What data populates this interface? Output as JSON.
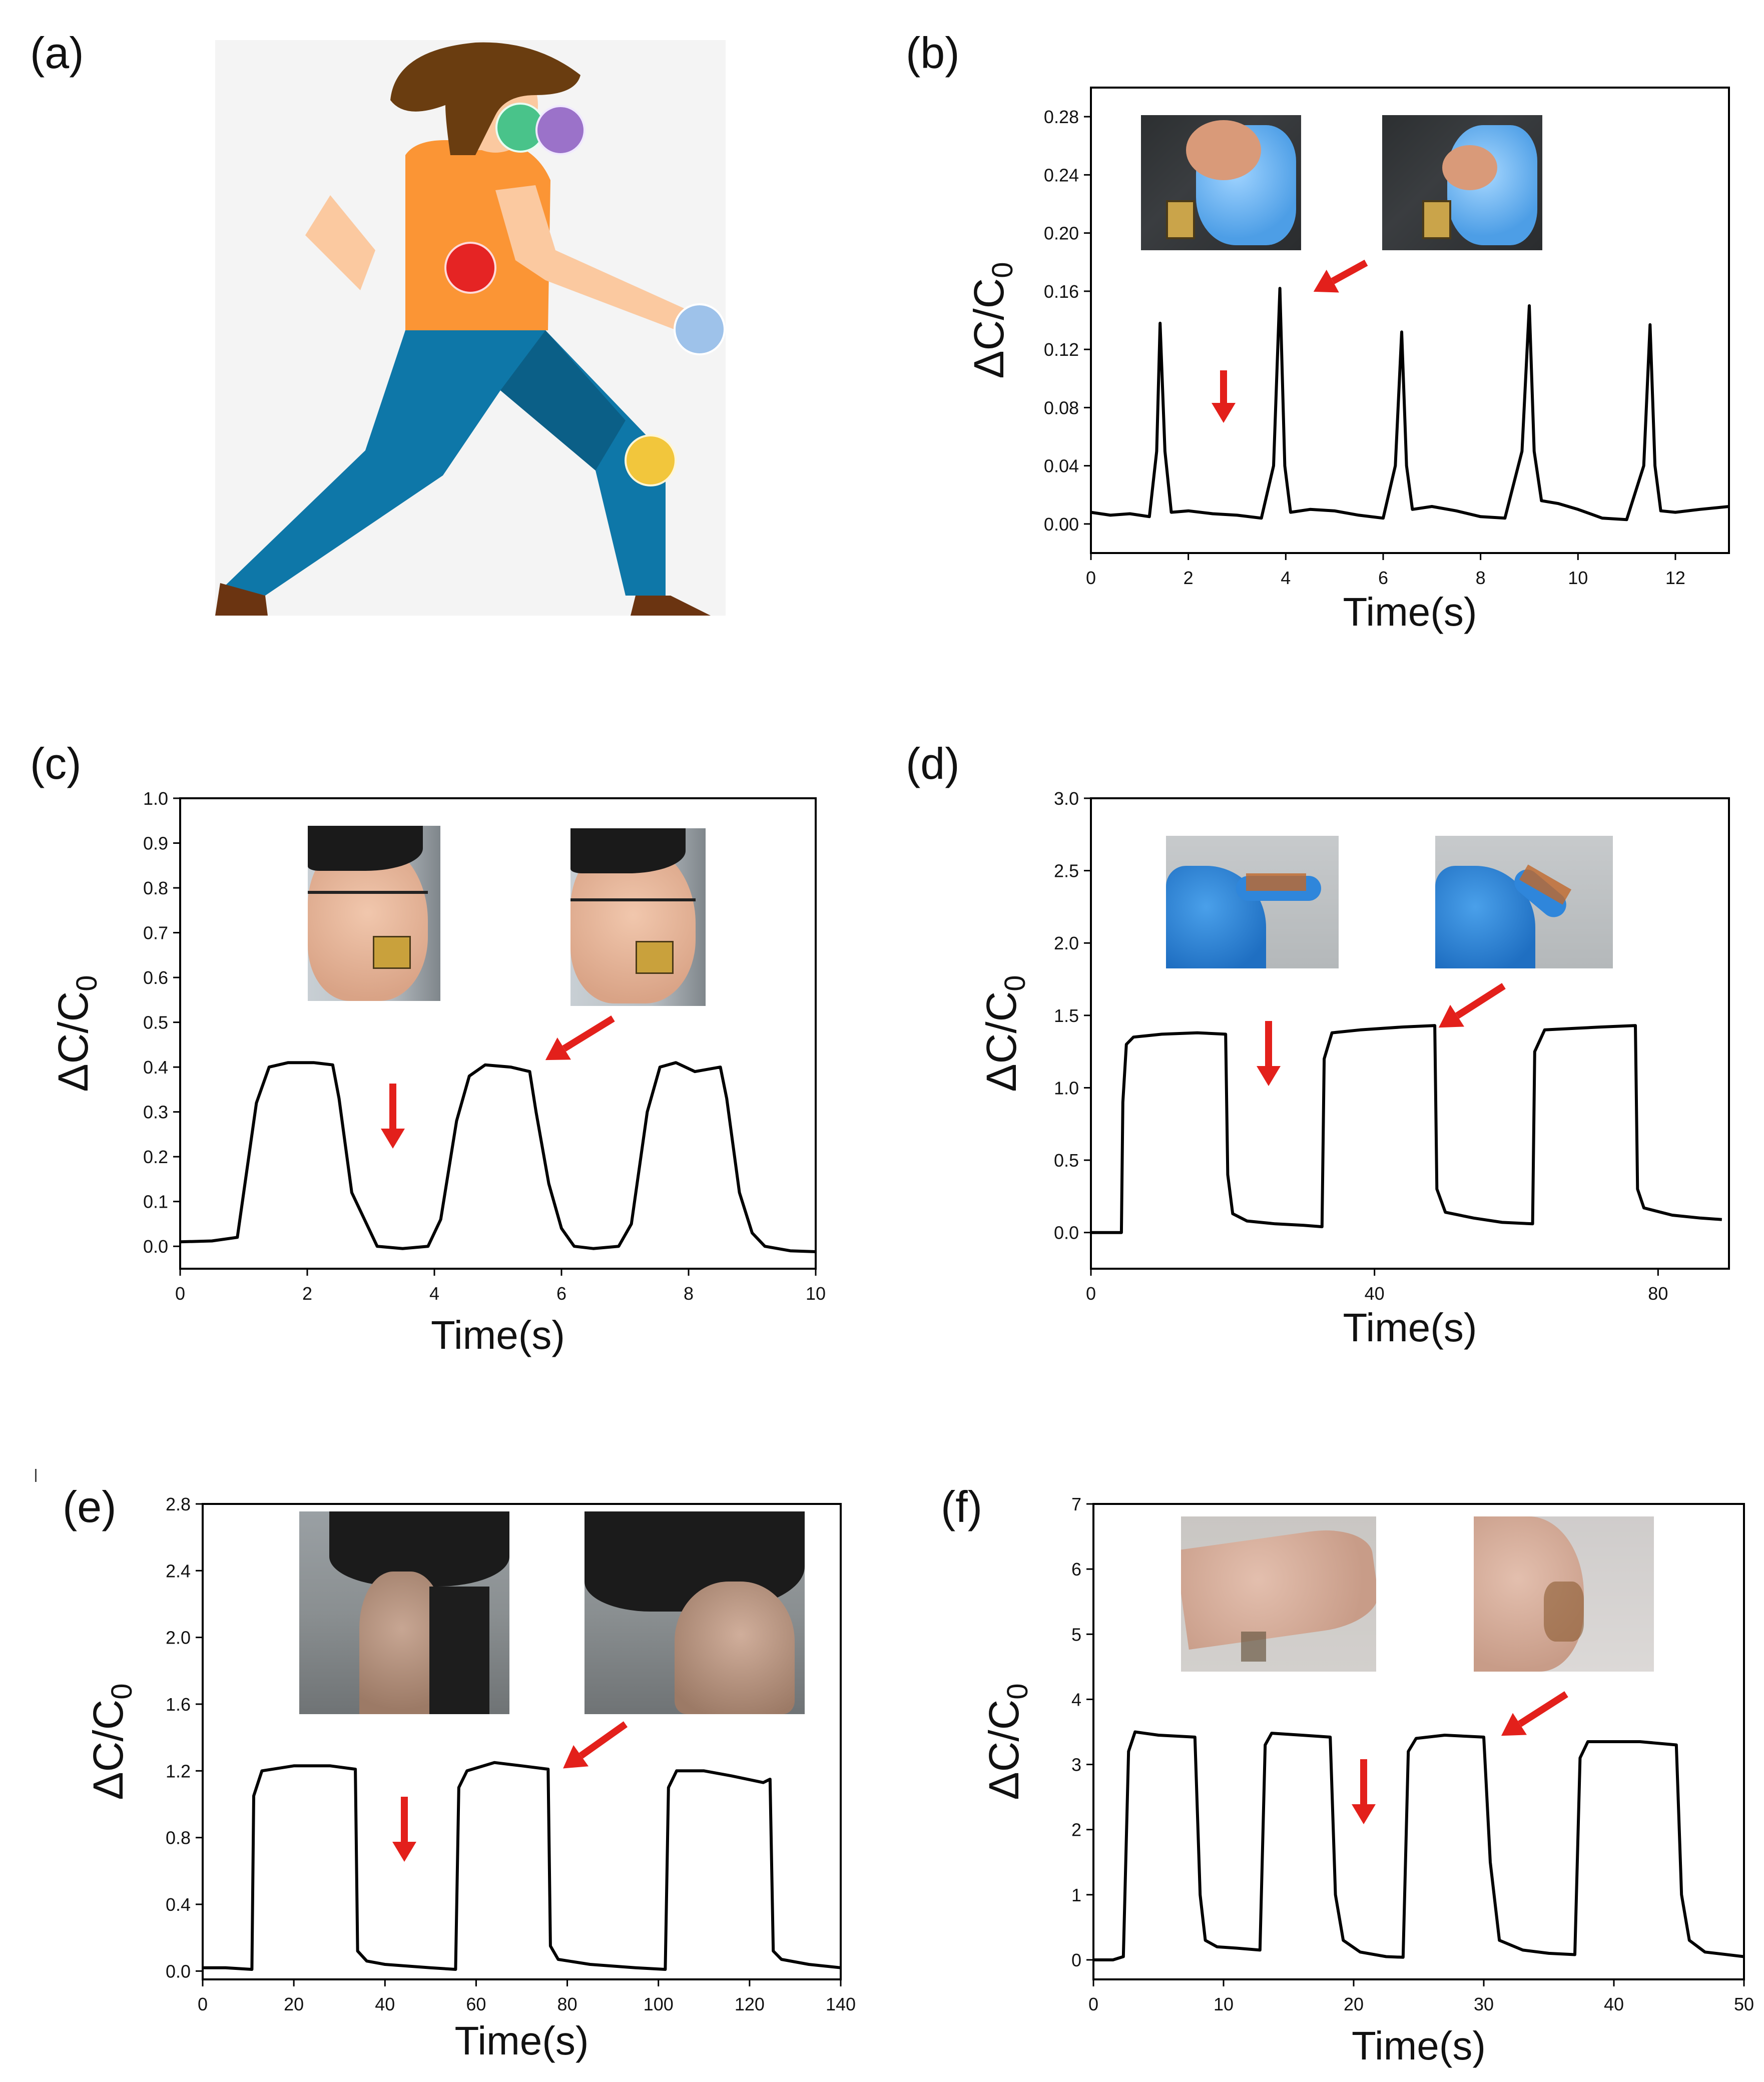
{
  "colors": {
    "line": "#000000",
    "arrow": "#e3201b",
    "figure_bg": "#f4f4f4",
    "hair": "#6a3d10",
    "shirt": "#fb9535",
    "skin": "#fbc9a0",
    "pants": "#0e77a8",
    "pants_dark": "#0b5f87",
    "shoe": "#6b3411",
    "dot_green": "#49c38a",
    "dot_purple": "#9b72c9",
    "dot_red": "#e52424",
    "dot_blue": "#9ec2ea",
    "dot_yellow": "#f2c63c"
  },
  "panels": {
    "a": {
      "label": "(a)",
      "icons": [
        "person-running-illustration",
        "sensor-dot-icon"
      ]
    },
    "b": {
      "label": "(b)"
    },
    "c": {
      "label": "(c)"
    },
    "d": {
      "label": "(d)"
    },
    "e": {
      "label": "(e)"
    },
    "f": {
      "label": "(f)"
    }
  },
  "chart_data": [
    {
      "id": "b",
      "type": "line",
      "xlabel": "Time(s)",
      "ylabel": "ΔC/C0",
      "xlim": [
        0,
        13.1
      ],
      "ylim": [
        -0.02,
        0.3
      ],
      "xticks": [
        0,
        2,
        4,
        6,
        8,
        10,
        12
      ],
      "yticks": [
        0.0,
        0.04,
        0.08,
        0.12,
        0.16,
        0.2,
        0.24,
        0.28
      ],
      "ytick_labels": [
        "0.00",
        "0.04",
        "0.08",
        "0.12",
        "0.16",
        "0.20",
        "0.24",
        "0.28"
      ],
      "series": [
        {
          "x": [
            0,
            0.4,
            0.8,
            1.2,
            1.35,
            1.42,
            1.52,
            1.65,
            2.0,
            2.5,
            3.0,
            3.5,
            3.75,
            3.88,
            3.98,
            4.1,
            4.5,
            5.0,
            5.5,
            6.0,
            6.25,
            6.38,
            6.48,
            6.6,
            7.0,
            7.5,
            8.0,
            8.5,
            8.85,
            9.0,
            9.1,
            9.25,
            9.6,
            10.0,
            10.5,
            11.0,
            11.35,
            11.48,
            11.58,
            11.7,
            12.0,
            12.5,
            13.1
          ],
          "y": [
            0.008,
            0.006,
            0.007,
            0.005,
            0.05,
            0.138,
            0.05,
            0.008,
            0.009,
            0.007,
            0.006,
            0.004,
            0.04,
            0.162,
            0.04,
            0.008,
            0.01,
            0.009,
            0.006,
            0.004,
            0.04,
            0.132,
            0.04,
            0.01,
            0.012,
            0.009,
            0.005,
            0.004,
            0.05,
            0.15,
            0.05,
            0.016,
            0.014,
            0.01,
            0.004,
            0.003,
            0.04,
            0.137,
            0.04,
            0.009,
            0.008,
            0.01,
            0.012
          ]
        }
      ],
      "annotations": [
        "release-down-arrow",
        "bend-diagonal-arrow"
      ]
    },
    {
      "id": "c",
      "type": "line",
      "xlabel": "Time(s)",
      "ylabel": "ΔC/C0",
      "xlim": [
        0,
        10
      ],
      "ylim": [
        -0.05,
        1.0
      ],
      "xticks": [
        0,
        2,
        4,
        6,
        8,
        10
      ],
      "yticks": [
        0.0,
        0.1,
        0.2,
        0.3,
        0.4,
        0.5,
        0.6,
        0.7,
        0.8,
        0.9,
        1.0
      ],
      "ytick_labels": [
        "0.0",
        "0.1",
        "0.2",
        "0.3",
        "0.4",
        "0.5",
        "0.6",
        "0.7",
        "0.8",
        "0.9",
        "1.0"
      ],
      "series": [
        {
          "x": [
            0,
            0.5,
            0.9,
            1.0,
            1.2,
            1.4,
            1.7,
            2.1,
            2.4,
            2.5,
            2.7,
            2.9,
            3.1,
            3.5,
            3.9,
            4.1,
            4.35,
            4.55,
            4.8,
            5.2,
            5.5,
            5.6,
            5.8,
            6.0,
            6.2,
            6.5,
            6.9,
            7.1,
            7.35,
            7.55,
            7.8,
            8.1,
            8.5,
            8.6,
            8.8,
            9.0,
            9.2,
            9.6,
            10.0
          ],
          "y": [
            0.01,
            0.012,
            0.02,
            0.12,
            0.32,
            0.4,
            0.41,
            0.41,
            0.405,
            0.33,
            0.12,
            0.06,
            0.0,
            -0.005,
            0.0,
            0.06,
            0.28,
            0.38,
            0.405,
            0.4,
            0.39,
            0.3,
            0.14,
            0.04,
            0.0,
            -0.005,
            0.0,
            0.05,
            0.3,
            0.4,
            0.41,
            0.39,
            0.4,
            0.33,
            0.12,
            0.03,
            0.0,
            -0.01,
            -0.012
          ]
        }
      ],
      "annotations": [
        "release-down-arrow",
        "puff-diagonal-arrow"
      ]
    },
    {
      "id": "d",
      "type": "line",
      "xlabel": "Time(s)",
      "ylabel": "ΔC/C0",
      "xlim": [
        0,
        90
      ],
      "ylim": [
        -0.25,
        3.0
      ],
      "xticks": [
        0,
        40,
        80
      ],
      "yticks": [
        0.0,
        0.5,
        1.0,
        1.5,
        2.0,
        2.5,
        3.0
      ],
      "ytick_labels": [
        "0.0",
        "0.5",
        "1.0",
        "1.5",
        "2.0",
        "2.5",
        "3.0"
      ],
      "series": [
        {
          "x": [
            0,
            4.3,
            4.5,
            5.0,
            6,
            10,
            15,
            19.0,
            19.3,
            20,
            22,
            26,
            30,
            32.6,
            32.9,
            34,
            38,
            44,
            48.5,
            48.8,
            50,
            54,
            58,
            62.3,
            62.6,
            64,
            68,
            72,
            76.8,
            77.1,
            78,
            82,
            86,
            89
          ],
          "y": [
            0.0,
            0.0,
            0.9,
            1.3,
            1.35,
            1.37,
            1.38,
            1.37,
            0.4,
            0.13,
            0.08,
            0.06,
            0.05,
            0.04,
            1.2,
            1.38,
            1.4,
            1.42,
            1.43,
            0.3,
            0.14,
            0.1,
            0.07,
            0.06,
            1.25,
            1.4,
            1.41,
            1.42,
            1.43,
            0.3,
            0.17,
            0.12,
            0.1,
            0.09
          ]
        }
      ],
      "annotations": [
        "release-down-arrow",
        "bend-diagonal-arrow"
      ]
    },
    {
      "id": "e",
      "type": "line",
      "xlabel": "Time(s)",
      "ylabel": "ΔC/C0",
      "xlim": [
        0,
        140
      ],
      "ylim": [
        -0.05,
        2.8
      ],
      "xticks": [
        0,
        20,
        40,
        60,
        80,
        100,
        120,
        140
      ],
      "yticks": [
        0.0,
        0.4,
        0.8,
        1.2,
        1.6,
        2.0,
        2.4,
        2.8
      ],
      "ytick_labels": [
        "0.0",
        "0.4",
        "0.8",
        "1.2",
        "1.6",
        "2.0",
        "2.4",
        "2.8"
      ],
      "series": [
        {
          "x": [
            0,
            5,
            10.8,
            11.2,
            13,
            20,
            28,
            33.5,
            34,
            36,
            40,
            50,
            55.5,
            56.2,
            58,
            64,
            70,
            75.8,
            76.3,
            78,
            85,
            95,
            101.5,
            102.2,
            104,
            110,
            116,
            123,
            124.5,
            125.2,
            127,
            133,
            140
          ],
          "y": [
            0.02,
            0.02,
            0.01,
            1.05,
            1.2,
            1.23,
            1.23,
            1.21,
            0.12,
            0.06,
            0.04,
            0.02,
            0.01,
            1.1,
            1.2,
            1.25,
            1.23,
            1.21,
            0.15,
            0.07,
            0.04,
            0.02,
            0.01,
            1.1,
            1.2,
            1.2,
            1.17,
            1.13,
            1.15,
            0.12,
            0.07,
            0.04,
            0.02
          ]
        }
      ],
      "annotations": [
        "release-down-arrow",
        "bend-diagonal-arrow"
      ]
    },
    {
      "id": "f",
      "type": "line",
      "xlabel": "Time(s)",
      "ylabel": "ΔC/C0",
      "xlim": [
        0,
        50
      ],
      "ylim": [
        -0.3,
        7
      ],
      "xticks": [
        0,
        10,
        20,
        30,
        40,
        50
      ],
      "yticks": [
        0,
        1,
        2,
        3,
        4,
        5,
        6,
        7
      ],
      "ytick_labels": [
        "0",
        "1",
        "2",
        "3",
        "4",
        "5",
        "6",
        "7"
      ],
      "series": [
        {
          "x": [
            0,
            1.5,
            2.3,
            2.7,
            3.2,
            5,
            7.8,
            8.2,
            8.6,
            9.5,
            11,
            12.8,
            13.2,
            13.7,
            16,
            18.2,
            18.6,
            19.2,
            20.5,
            22.5,
            23.8,
            24.2,
            24.8,
            27,
            30.0,
            30.5,
            31.2,
            33,
            35,
            37.0,
            37.4,
            38,
            42,
            44.8,
            45.2,
            45.8,
            47,
            50
          ],
          "y": [
            0.0,
            0.0,
            0.05,
            3.2,
            3.5,
            3.45,
            3.42,
            1.0,
            0.3,
            0.2,
            0.18,
            0.15,
            3.3,
            3.48,
            3.45,
            3.42,
            1.0,
            0.3,
            0.12,
            0.05,
            0.04,
            3.2,
            3.4,
            3.45,
            3.42,
            1.5,
            0.3,
            0.15,
            0.1,
            0.08,
            3.1,
            3.35,
            3.35,
            3.3,
            1.0,
            0.3,
            0.12,
            0.05
          ]
        }
      ],
      "annotations": [
        "release-down-arrow",
        "bend-diagonal-arrow"
      ]
    }
  ]
}
